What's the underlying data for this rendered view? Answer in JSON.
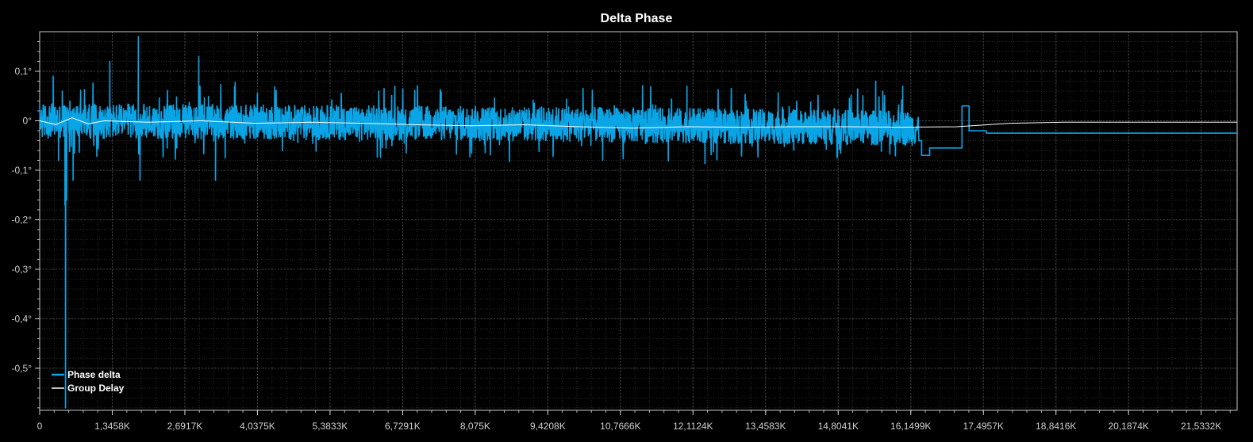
{
  "chart_data": {
    "type": "line",
    "title": "Delta Phase",
    "xlabel": "",
    "ylabel": "",
    "xlim": [
      0,
      22200
    ],
    "ylim": [
      -0.585,
      0.18
    ],
    "grid": true,
    "legend_position": "bottom-left",
    "x_ticks": [
      {
        "value": 0,
        "label": "0"
      },
      {
        "value": 1345.8,
        "label": "1,3458K"
      },
      {
        "value": 2691.7,
        "label": "2,6917K"
      },
      {
        "value": 4037.5,
        "label": "4,0375K"
      },
      {
        "value": 5383.3,
        "label": "5,3833K"
      },
      {
        "value": 6729.1,
        "label": "6,7291K"
      },
      {
        "value": 8075,
        "label": "8,075K"
      },
      {
        "value": 9420.8,
        "label": "9,4208K"
      },
      {
        "value": 10766.6,
        "label": "10,7666K"
      },
      {
        "value": 12112.4,
        "label": "12,1124K"
      },
      {
        "value": 13458.3,
        "label": "13,4583K"
      },
      {
        "value": 14804.1,
        "label": "14,8041K"
      },
      {
        "value": 16149.9,
        "label": "16,1499K"
      },
      {
        "value": 17495.7,
        "label": "17,4957K"
      },
      {
        "value": 18841.6,
        "label": "18,8416K"
      },
      {
        "value": 20187.4,
        "label": "20,1874K"
      },
      {
        "value": 21533.2,
        "label": "21,5332K"
      }
    ],
    "y_ticks": [
      {
        "value": 0.1,
        "label": "0,1°"
      },
      {
        "value": 0,
        "label": "0°"
      },
      {
        "value": -0.1,
        "label": "-0,1°"
      },
      {
        "value": -0.2,
        "label": "-0,2°"
      },
      {
        "value": -0.3,
        "label": "-0,3°"
      },
      {
        "value": -0.4,
        "label": "-0,4°"
      },
      {
        "value": -0.5,
        "label": "-0,5°"
      }
    ],
    "series": [
      {
        "name": "Phase delta",
        "color": "#0aa5e6",
        "noise_band": {
          "x_start": 0,
          "x_end": 16300,
          "center": [
            [
              0,
              0.0
            ],
            [
              8000,
              -0.005
            ],
            [
              16300,
              -0.015
            ]
          ],
          "amplitude": 0.035,
          "spike_amplitude": 0.08
        },
        "points": [
          [
            80,
            0.02
          ],
          [
            250,
            0.09
          ],
          [
            350,
            -0.08
          ],
          [
            420,
            0.06
          ],
          [
            470,
            -0.17
          ],
          [
            480,
            -0.58
          ],
          [
            500,
            -0.16
          ],
          [
            560,
            0.04
          ],
          [
            620,
            -0.12
          ],
          [
            1300,
            0.12
          ],
          [
            1830,
            0.17
          ],
          [
            1860,
            -0.12
          ],
          [
            2950,
            0.13
          ],
          [
            3260,
            -0.12
          ],
          [
            12000,
            0.07
          ],
          [
            15500,
            0.08
          ],
          [
            16000,
            0.07
          ],
          [
            16300,
            -0.04
          ],
          [
            16350,
            -0.07
          ],
          [
            16500,
            -0.055
          ],
          [
            17050,
            -0.055
          ],
          [
            17100,
            0.03
          ],
          [
            17200,
            0.03
          ],
          [
            17230,
            -0.02
          ],
          [
            17500,
            -0.02
          ],
          [
            17550,
            -0.025
          ],
          [
            22200,
            -0.025
          ]
        ]
      },
      {
        "name": "Group Delay",
        "color": "#ffffff",
        "points": [
          [
            0,
            0.0
          ],
          [
            300,
            -0.005
          ],
          [
            600,
            0.005
          ],
          [
            900,
            -0.003
          ],
          [
            1200,
            0.0
          ],
          [
            2000,
            -0.003
          ],
          [
            3000,
            0.0
          ],
          [
            4000,
            -0.005
          ],
          [
            5000,
            -0.003
          ],
          [
            6000,
            -0.005
          ],
          [
            7000,
            -0.008
          ],
          [
            8000,
            -0.01
          ],
          [
            9000,
            -0.008
          ],
          [
            10000,
            -0.012
          ],
          [
            11000,
            -0.015
          ],
          [
            12000,
            -0.012
          ],
          [
            13000,
            -0.013
          ],
          [
            14000,
            -0.012
          ],
          [
            15000,
            -0.012
          ],
          [
            16000,
            -0.013
          ],
          [
            17000,
            -0.012
          ],
          [
            18000,
            -0.005
          ],
          [
            19000,
            -0.003
          ],
          [
            20000,
            -0.003
          ],
          [
            22200,
            -0.003
          ]
        ]
      }
    ]
  }
}
